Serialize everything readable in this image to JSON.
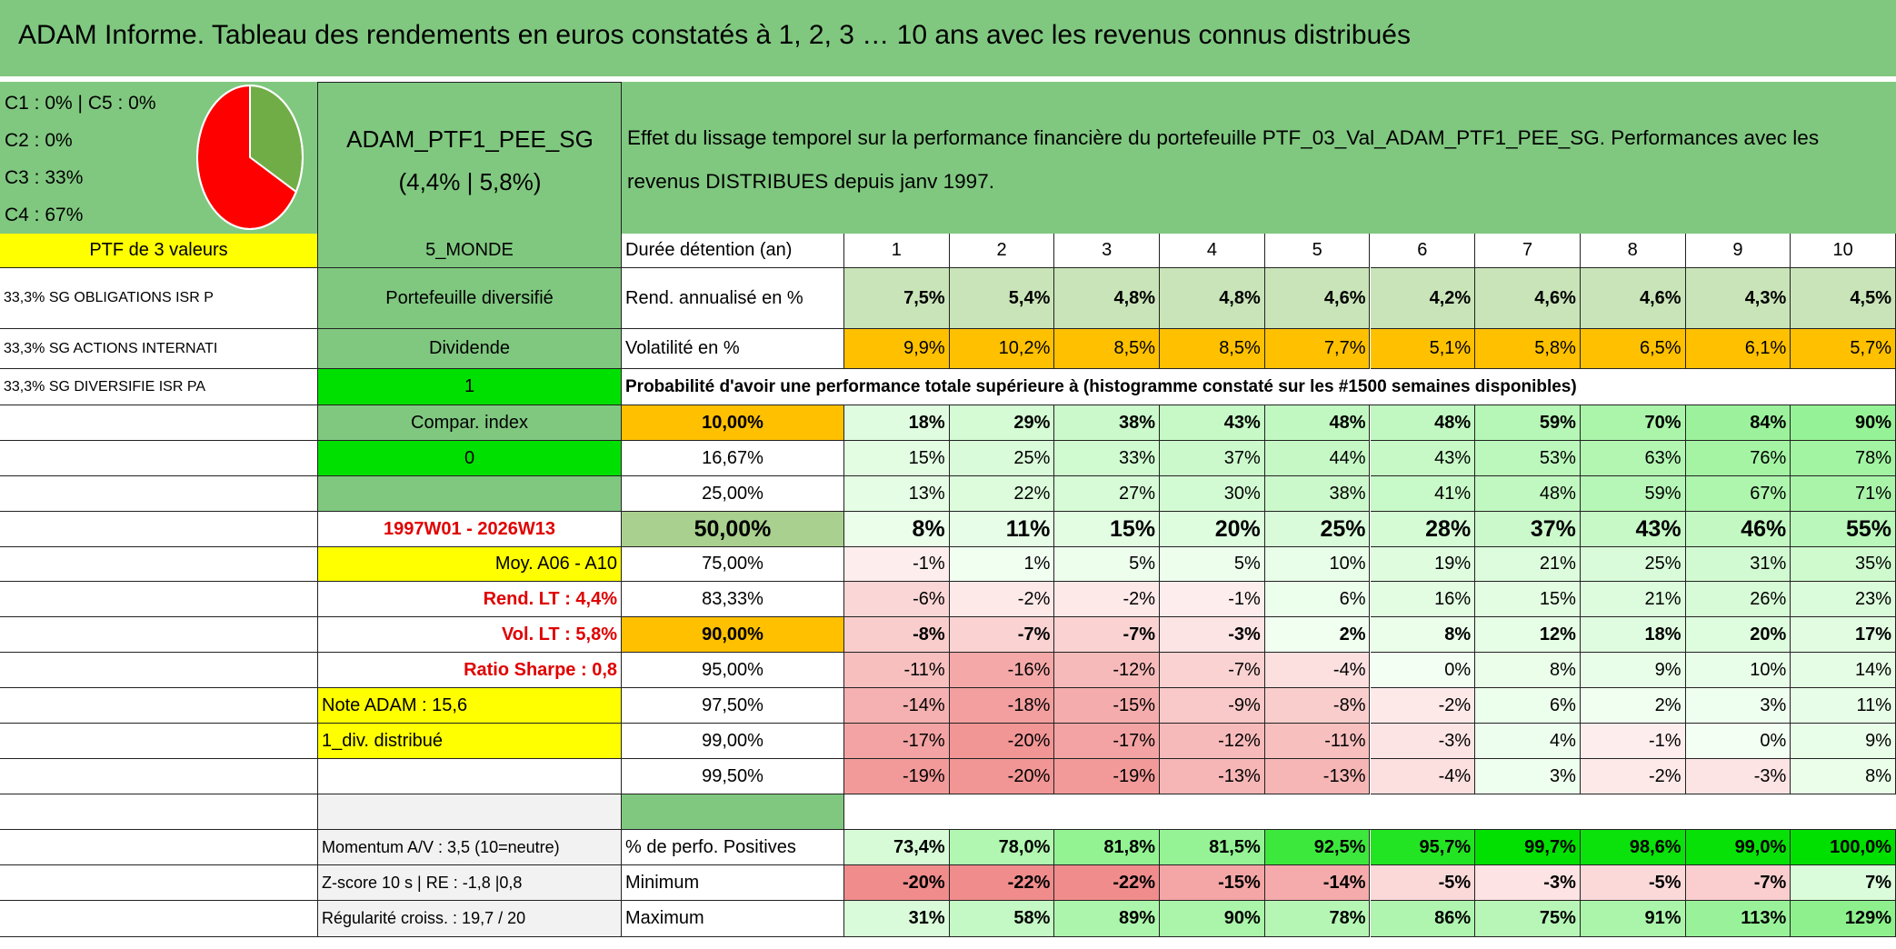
{
  "header": {
    "title": "ADAM Informe. Tableau des rendements en euros constatés à 1, 2, 3 … 10 ans avec les revenus connus distribués"
  },
  "pie": {
    "legend": [
      "C1 : 0% | C5 : 0%",
      "C2 : 0%",
      "C3 : 33%",
      "C4 : 67%"
    ],
    "slices": [
      {
        "value": 33,
        "color": "#70ad47"
      },
      {
        "value": 67,
        "color": "#ff0000"
      }
    ]
  },
  "portfolio": {
    "name": "ADAM_PTF1_PEE_SG",
    "perf": "(4,4% | 5,8%)",
    "description": "Effet du lissage temporel sur la performance financière du portefeuille PTF_03_Val_ADAM_PTF1_PEE_SG. Performances avec les revenus DISTRIBUES depuis janv 1997."
  },
  "sidebar": [
    {
      "a": "PTF de 3 valeurs",
      "b": "5_MONDE"
    },
    {
      "a": "33,3% SG OBLIGATIONS ISR P",
      "b": "Portefeuille diversifié"
    },
    {
      "a": "33,3% SG ACTIONS INTERNATI",
      "b": "Dividende"
    },
    {
      "a": "33,3% SG DIVERSIFIE ISR PA",
      "b": "1"
    },
    {
      "b": "Compar. index"
    },
    {
      "b": "0"
    },
    {},
    {
      "b": "1997W01 - 2026W13"
    },
    {
      "b": "Moy. A06 - A10"
    },
    {
      "b": "Rend. LT : 4,4%"
    },
    {
      "b": "Vol. LT : 5,8%"
    },
    {
      "b": "Ratio Sharpe : 0,8"
    },
    {
      "b": "Note ADAM : 15,6"
    },
    {
      "b": "1_div. distribué"
    },
    {}
  ],
  "table": {
    "duration": {
      "label": "Durée détention (an)",
      "years": [
        "1",
        "2",
        "3",
        "4",
        "5",
        "6",
        "7",
        "8",
        "9",
        "10"
      ]
    },
    "return": {
      "label": "Rend. annualisé en %",
      "values": [
        "7,5%",
        "5,4%",
        "4,8%",
        "4,8%",
        "4,6%",
        "4,2%",
        "4,6%",
        "4,6%",
        "4,3%",
        "4,5%"
      ]
    },
    "volatility": {
      "label": "Volatilité en %",
      "values": [
        "9,9%",
        "10,2%",
        "8,5%",
        "8,5%",
        "7,7%",
        "5,1%",
        "5,8%",
        "6,5%",
        "6,1%",
        "5,7%"
      ]
    },
    "prob_title": "Probabilité d'avoir une performance totale supérieure à (histogramme constaté sur les #1500 semaines disponibles)",
    "prob_rows": [
      {
        "threshold": "10,00%",
        "values": [
          "18%",
          "29%",
          "38%",
          "43%",
          "48%",
          "48%",
          "59%",
          "70%",
          "84%",
          "90%"
        ]
      },
      {
        "threshold": "16,67%",
        "values": [
          "15%",
          "25%",
          "33%",
          "37%",
          "44%",
          "43%",
          "53%",
          "63%",
          "76%",
          "78%"
        ]
      },
      {
        "threshold": "25,00%",
        "values": [
          "13%",
          "22%",
          "27%",
          "30%",
          "38%",
          "41%",
          "48%",
          "59%",
          "67%",
          "71%"
        ]
      },
      {
        "threshold": "50,00%",
        "values": [
          "8%",
          "11%",
          "15%",
          "20%",
          "25%",
          "28%",
          "37%",
          "43%",
          "46%",
          "55%"
        ]
      },
      {
        "threshold": "75,00%",
        "values": [
          "-1%",
          "1%",
          "5%",
          "5%",
          "10%",
          "19%",
          "21%",
          "25%",
          "31%",
          "35%"
        ]
      },
      {
        "threshold": "83,33%",
        "values": [
          "-6%",
          "-2%",
          "-2%",
          "-1%",
          "6%",
          "16%",
          "15%",
          "21%",
          "26%",
          "23%"
        ]
      },
      {
        "threshold": "90,00%",
        "values": [
          "-8%",
          "-7%",
          "-7%",
          "-3%",
          "2%",
          "8%",
          "12%",
          "18%",
          "20%",
          "17%"
        ]
      },
      {
        "threshold": "95,00%",
        "values": [
          "-11%",
          "-16%",
          "-12%",
          "-7%",
          "-4%",
          "0%",
          "8%",
          "9%",
          "10%",
          "14%"
        ]
      },
      {
        "threshold": "97,50%",
        "values": [
          "-14%",
          "-18%",
          "-15%",
          "-9%",
          "-8%",
          "-2%",
          "6%",
          "2%",
          "3%",
          "11%"
        ]
      },
      {
        "threshold": "99,00%",
        "values": [
          "-17%",
          "-20%",
          "-17%",
          "-12%",
          "-11%",
          "-3%",
          "4%",
          "-1%",
          "0%",
          "9%"
        ]
      },
      {
        "threshold": "99,50%",
        "values": [
          "-19%",
          "-20%",
          "-19%",
          "-13%",
          "-13%",
          "-4%",
          "3%",
          "-2%",
          "-3%",
          "8%"
        ]
      }
    ],
    "stats": [
      {
        "side": "Momentum A/V : 3,5 (10=neutre)",
        "label": "% de perfo. Positives",
        "values": [
          "73,4%",
          "78,0%",
          "81,8%",
          "81,5%",
          "92,5%",
          "95,7%",
          "99,7%",
          "98,6%",
          "99,0%",
          "100,0%"
        ]
      },
      {
        "side": "Z-score 10 s | RE : -1,8 |0,8",
        "label": "Minimum",
        "values": [
          "-20%",
          "-22%",
          "-22%",
          "-15%",
          "-14%",
          "-5%",
          "-3%",
          "-5%",
          "-7%",
          "7%"
        ]
      },
      {
        "side": "Régularité croiss. : 19,7 / 20",
        "label": "Maximum",
        "values": [
          "31%",
          "58%",
          "89%",
          "90%",
          "78%",
          "86%",
          "75%",
          "91%",
          "113%",
          "129%"
        ]
      }
    ]
  }
}
